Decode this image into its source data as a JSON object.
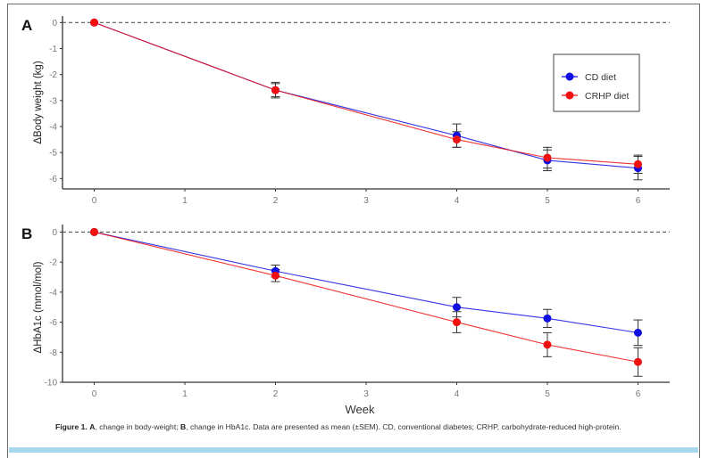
{
  "caption": {
    "figure_label": "Figure 1.",
    "part_a_label": "A",
    "part_a_text": ", change in body-weight; ",
    "part_b_label": "B",
    "part_b_text": ", change in HbA1c. Data are presented as mean (±SEM). CD, conventional diabetes; CRHP, carbohydrate-reduced high-protein."
  },
  "colors": {
    "cd": "#1010e0",
    "crhp": "#f01010",
    "axis": "#333333",
    "tick_text": "#777777",
    "error_bar": "#333333",
    "reference_line": "#555555"
  },
  "chart_data": [
    {
      "panel": "A",
      "type": "line",
      "title": "",
      "xlabel": "",
      "ylabel": "ΔBody weight (kg)",
      "x": [
        0,
        2,
        4,
        5,
        6
      ],
      "xticks": [
        0,
        1,
        2,
        3,
        4,
        5,
        6
      ],
      "yticks": [
        0,
        -1,
        -2,
        -3,
        -4,
        -5,
        -6
      ],
      "xlim": [
        -0.35,
        6.35
      ],
      "ylim": [
        -6.4,
        0.25
      ],
      "reference_line_y": 0,
      "grid": false,
      "legend": {
        "position": "top-right",
        "entries": [
          "CD diet",
          "CRHP diet"
        ]
      },
      "series": [
        {
          "name": "CD diet",
          "color_key": "cd",
          "values": [
            0,
            -2.6,
            -4.35,
            -5.3,
            -5.6
          ],
          "sem": [
            0,
            0.25,
            0.45,
            0.4,
            0.45
          ]
        },
        {
          "name": "CRHP diet",
          "color_key": "crhp",
          "values": [
            0,
            -2.6,
            -4.5,
            -5.2,
            -5.45
          ],
          "sem": [
            0,
            0.3,
            0.3,
            0.4,
            0.35
          ]
        }
      ]
    },
    {
      "panel": "B",
      "type": "line",
      "title": "",
      "xlabel": "Week",
      "ylabel": "ΔHbA1c (mmol/mol)",
      "x": [
        0,
        2,
        4,
        5,
        6
      ],
      "xticks": [
        0,
        1,
        2,
        3,
        4,
        5,
        6
      ],
      "yticks": [
        0,
        -2,
        -4,
        -6,
        -8,
        -10
      ],
      "xlim": [
        -0.35,
        6.35
      ],
      "ylim": [
        -10,
        0.5
      ],
      "reference_line_y": 0,
      "grid": false,
      "series": [
        {
          "name": "CD diet",
          "color_key": "cd",
          "values": [
            0,
            -2.6,
            -5.0,
            -5.75,
            -6.7
          ],
          "sem": [
            0,
            0.4,
            0.65,
            0.6,
            0.85
          ]
        },
        {
          "name": "CRHP diet",
          "color_key": "crhp",
          "values": [
            0,
            -2.9,
            -6.0,
            -7.5,
            -8.65
          ],
          "sem": [
            0,
            0.4,
            0.7,
            0.8,
            0.95
          ]
        }
      ]
    }
  ]
}
